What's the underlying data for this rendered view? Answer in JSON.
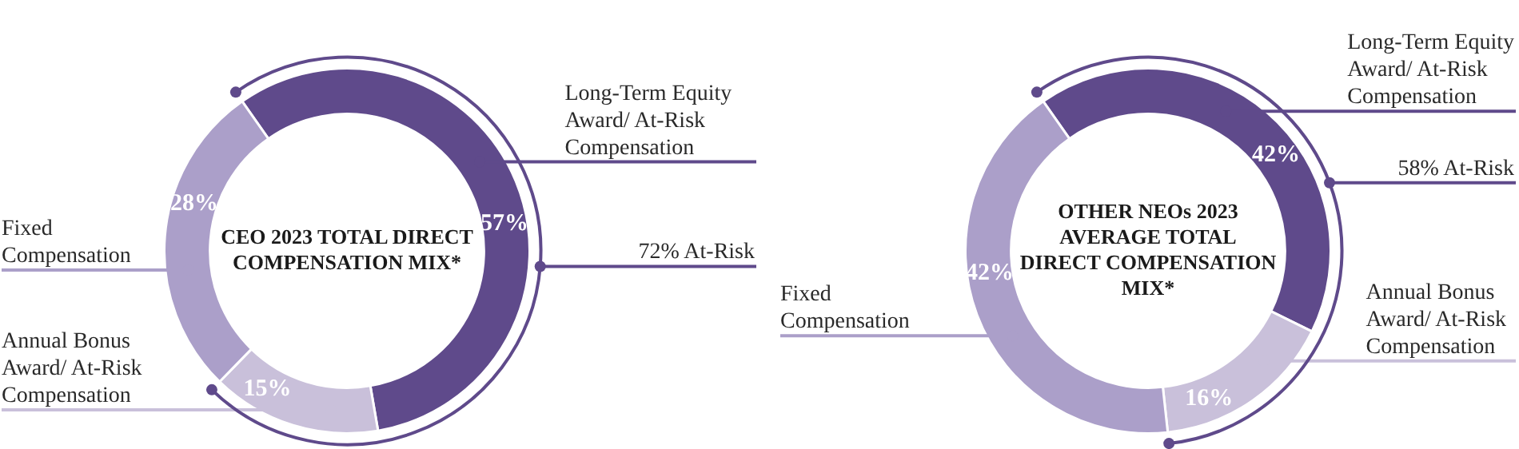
{
  "chart_data": [
    {
      "type": "donut",
      "title": "CEO 2023 TOTAL DIRECT COMPENSATION MIX*",
      "categories": [
        "Long-Term Equity Award/ At-Risk Compensation",
        "Annual Bonus Award/ At-Risk Compensation",
        "Fixed Compensation"
      ],
      "values": [
        57,
        15,
        28
      ],
      "value_labels": [
        "57%",
        "15%",
        "28%"
      ],
      "colors": [
        "#5f4a8b",
        "#c9c0da",
        "#ab9fc9"
      ],
      "annotations": [
        "72% At-Risk"
      ]
    },
    {
      "type": "donut",
      "title": "OTHER NEOs 2023 AVERAGE TOTAL DIRECT COMPENSATION MIX*",
      "categories": [
        "Long-Term Equity Award/ At-Risk Compensation",
        "Annual Bonus Award/ At-Risk Compensation",
        "Fixed Compensation"
      ],
      "values": [
        42,
        16,
        42
      ],
      "value_labels": [
        "42%",
        "16%",
        "42%"
      ],
      "colors": [
        "#5f4a8b",
        "#c9c0da",
        "#ab9fc9"
      ],
      "annotations": [
        "58% At-Risk"
      ]
    }
  ]
}
